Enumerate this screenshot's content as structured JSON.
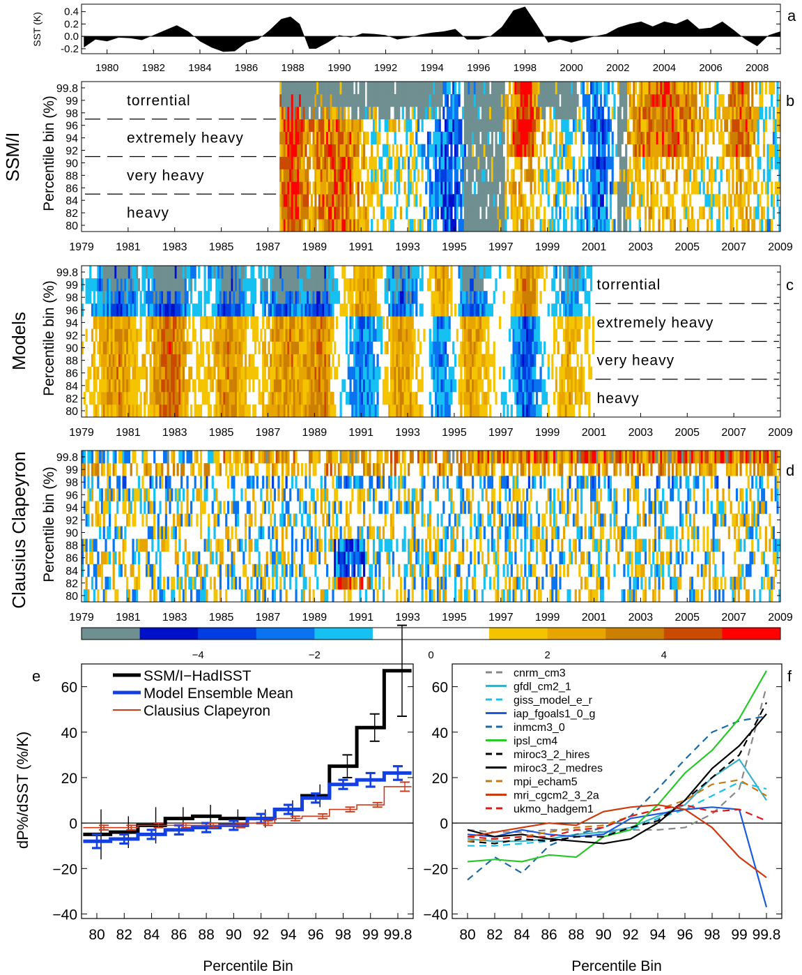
{
  "chart_data": [
    {
      "id": "a",
      "type": "area",
      "panel_label": "a",
      "ylabel": "SST (K)",
      "yticks": [
        "0.4",
        "0.2",
        "0.0",
        "-0.2"
      ],
      "ylim": [
        -0.28,
        0.52
      ],
      "xlim": [
        1978.9,
        2009.0
      ],
      "xticks": [
        "1980",
        "1982",
        "1984",
        "1986",
        "1988",
        "1990",
        "1992",
        "1994",
        "1996",
        "1998",
        "2000",
        "2002",
        "2004",
        "2006",
        "2008"
      ],
      "x": [
        1979.0,
        1979.5,
        1980.0,
        1980.5,
        1981.0,
        1981.5,
        1982.0,
        1982.5,
        1983.0,
        1983.5,
        1984.0,
        1984.5,
        1985.0,
        1985.5,
        1986.0,
        1986.5,
        1987.0,
        1987.5,
        1987.9,
        1988.3,
        1988.7,
        1989.0,
        1989.5,
        1990.0,
        1990.5,
        1991.0,
        1991.5,
        1992.0,
        1992.5,
        1993.0,
        1993.5,
        1994.0,
        1994.5,
        1995.0,
        1995.5,
        1996.0,
        1996.5,
        1997.0,
        1997.5,
        1998.0,
        1998.5,
        1999.0,
        1999.5,
        2000.0,
        2000.5,
        2001.0,
        2001.5,
        2002.0,
        2002.5,
        2003.0,
        2003.5,
        2004.0,
        2004.5,
        2005.0,
        2005.5,
        2006.0,
        2006.5,
        2007.0,
        2007.5,
        2008.0,
        2008.5,
        2009.0
      ],
      "y": [
        -0.18,
        -0.05,
        -0.08,
        -0.02,
        -0.03,
        -0.06,
        0.02,
        0.1,
        0.18,
        0.08,
        -0.08,
        -0.18,
        -0.25,
        -0.24,
        -0.1,
        -0.05,
        0.1,
        0.28,
        0.32,
        0.2,
        -0.2,
        -0.2,
        -0.1,
        0.02,
        -0.02,
        0.05,
        0.04,
        0.02,
        -0.05,
        -0.02,
        0.03,
        0.06,
        0.08,
        0.12,
        -0.05,
        -0.05,
        0.0,
        0.15,
        0.42,
        0.48,
        0.2,
        -0.1,
        -0.05,
        -0.1,
        -0.05,
        0.0,
        0.04,
        0.14,
        0.2,
        0.24,
        0.16,
        0.24,
        0.2,
        0.28,
        0.12,
        0.14,
        0.24,
        0.1,
        -0.05,
        -0.16,
        0.02,
        0.08
      ]
    },
    {
      "id": "b",
      "type": "heatmap",
      "panel_label": "b",
      "row_label": "SSM/I",
      "ylabel": "Percentile bin (%)",
      "yticks": [
        "80",
        "82",
        "84",
        "86",
        "88",
        "90",
        "92",
        "94",
        "96",
        "98",
        "99",
        "99.8"
      ],
      "xticks": [
        "1979",
        "1981",
        "1983",
        "1985",
        "1987",
        "1989",
        "1991",
        "1993",
        "1995",
        "1997",
        "1999",
        "2001",
        "2003",
        "2005",
        "2007",
        "2009"
      ],
      "data_start": 1987.5,
      "data_end": 2009.0,
      "missing_note_before": 1987.5,
      "categories": [
        "torrential",
        "extremely heavy",
        "very heavy",
        "heavy"
      ],
      "anomaly_series": [
        {
          "center": 1988.0,
          "amp": 5,
          "width": 0.6,
          "rows": "all"
        },
        {
          "center": 1990.0,
          "amp": 4,
          "width": 1.2,
          "rows": "low"
        },
        {
          "center": 1998.0,
          "amp": 5,
          "width": 0.7,
          "rows": "high"
        },
        {
          "center": 2004.0,
          "amp": 4,
          "width": 1.6,
          "rows": "high"
        },
        {
          "center": 2007.3,
          "amp": 4,
          "width": 0.6,
          "rows": "high"
        },
        {
          "center": 1994.7,
          "amp": -3,
          "width": 0.8,
          "rows": "mid"
        },
        {
          "center": 2001.2,
          "amp": -3,
          "width": 0.6,
          "rows": "mid"
        }
      ],
      "gray_blocks": [
        {
          "from": 1987.6,
          "to": 1994.5,
          "rows": "top"
        },
        {
          "from": 1995.4,
          "to": 1997.2,
          "rows": "all"
        },
        {
          "from": 1998.6,
          "to": 2000.3,
          "rows": "top"
        },
        {
          "from": 2002.0,
          "to": 2002.4,
          "rows": "all"
        }
      ]
    },
    {
      "id": "c",
      "type": "heatmap",
      "panel_label": "c",
      "row_label": "Models",
      "ylabel": "Percentile bin (%)",
      "yticks": [
        "80",
        "82",
        "84",
        "86",
        "88",
        "90",
        "92",
        "94",
        "96",
        "98",
        "99",
        "99.8"
      ],
      "xticks": [
        "1979",
        "1981",
        "1983",
        "1985",
        "1987",
        "1989",
        "1991",
        "1993",
        "1995",
        "1997",
        "1999",
        "2001",
        "2003",
        "2005",
        "2007",
        "2009"
      ],
      "data_start": 1979.0,
      "data_end": 2001.0,
      "categories": [
        "torrential",
        "extremely heavy",
        "very heavy",
        "heavy"
      ],
      "anomaly_series": [
        {
          "center": 1980.5,
          "amp": 3,
          "width": 1.0
        },
        {
          "center": 1982.8,
          "amp": 4,
          "width": 0.8
        },
        {
          "center": 1985.3,
          "amp": 3,
          "width": 0.8
        },
        {
          "center": 1987.8,
          "amp": 3,
          "width": 1.0
        },
        {
          "center": 1989.3,
          "amp": 3,
          "width": 0.6
        },
        {
          "center": 1991.3,
          "amp": -3,
          "width": 0.9
        },
        {
          "center": 1992.6,
          "amp": 3,
          "width": 1.0
        },
        {
          "center": 1994.6,
          "amp": -3,
          "width": 0.7
        },
        {
          "center": 1995.6,
          "amp": 3,
          "width": 0.8
        },
        {
          "center": 1998.1,
          "amp": -3,
          "width": 0.6
        },
        {
          "center": 2000.0,
          "amp": 2,
          "width": 0.7
        }
      ]
    },
    {
      "id": "d",
      "type": "heatmap",
      "panel_label": "d",
      "row_label": "Clausius Clapeyron",
      "ylabel": "Percentile bin (%)",
      "yticks": [
        "80",
        "82",
        "84",
        "86",
        "88",
        "90",
        "92",
        "94",
        "96",
        "98",
        "99",
        "99.8"
      ],
      "xticks": [
        "1979",
        "1981",
        "1983",
        "1985",
        "1987",
        "1989",
        "1991",
        "1993",
        "1995",
        "1997",
        "1999",
        "2001",
        "2003",
        "2005",
        "2007",
        "2009"
      ],
      "data_start": 1979.0,
      "data_end": 2009.0
    },
    {
      "id": "colorbar",
      "type": "heatmap",
      "colors": [
        "#6f8f91",
        "#0010c8",
        "#003ee0",
        "#0a74f0",
        "#16c0f0",
        "#ffffff",
        "#ffffff",
        "#f5c400",
        "#e8a500",
        "#cc7f00",
        "#cc4a00",
        "#ff0000"
      ],
      "ticks": [
        {
          "label": "−4",
          "value": -4
        },
        {
          "label": "−2",
          "value": -2
        },
        {
          "label": "0",
          "value": 0
        },
        {
          "label": "2",
          "value": 2
        },
        {
          "label": "4",
          "value": 4
        }
      ],
      "range": [
        -6,
        6
      ]
    },
    {
      "id": "e",
      "type": "line",
      "panel_label": "e",
      "xlabel": "Percentile Bin",
      "ylabel": "dP%/dSST (%/K)",
      "ylim": [
        -42,
        70
      ],
      "yticks": [
        -40,
        -20,
        0,
        20,
        40,
        60
      ],
      "categories": [
        "80",
        "82",
        "84",
        "86",
        "88",
        "90",
        "92",
        "94",
        "96",
        "98",
        "99",
        "99.8"
      ],
      "series": [
        {
          "name": "SSM/I−HadISST",
          "color": "#000000",
          "values": [
            -5,
            -4,
            -1,
            2,
            3,
            2,
            2,
            6,
            12,
            25,
            42,
            67
          ],
          "err": [
            11,
            7,
            8,
            5,
            5,
            4,
            4,
            4,
            5,
            5,
            6,
            20
          ]
        },
        {
          "name": "Model Ensemble Mean",
          "color": "#1540e0",
          "values": [
            -8,
            -7,
            -5,
            -3,
            -2,
            -1,
            2,
            6,
            11,
            17,
            19,
            22
          ],
          "err": [
            3,
            2,
            2,
            2,
            2,
            2,
            2,
            2,
            2,
            2,
            3,
            3
          ]
        },
        {
          "name": "Clausius Clapeyron",
          "color": "#cc3a1a",
          "values": [
            -2,
            -2,
            -1,
            -1,
            -1,
            -1,
            0,
            2,
            3,
            6,
            8,
            16
          ],
          "err": [
            1,
            1,
            1,
            1,
            1,
            1,
            1,
            1,
            1,
            1,
            1,
            2
          ]
        }
      ]
    },
    {
      "id": "f",
      "type": "line",
      "panel_label": "f",
      "xlabel": "Percentile Bin",
      "ylim": [
        -42,
        70
      ],
      "yticks": [
        -40,
        -20,
        0,
        20,
        40,
        60
      ],
      "categories": [
        "80",
        "82",
        "84",
        "86",
        "88",
        "90",
        "92",
        "94",
        "96",
        "98",
        "99",
        "99.8"
      ],
      "series": [
        {
          "name": "cnrm_cm3",
          "color": "#888888",
          "dash": true,
          "values": [
            -3,
            -4,
            -4,
            -3,
            -3,
            -4,
            -3,
            -3,
            -2,
            4,
            15,
            60
          ]
        },
        {
          "name": "gfdl_cm2_1",
          "color": "#3ab0c8",
          "dash": false,
          "values": [
            -7,
            -8,
            -8,
            -7,
            -5,
            -4,
            -2,
            3,
            8,
            20,
            28,
            10
          ]
        },
        {
          "name": "giss_model_e_r",
          "color": "#18c0ee",
          "dash": true,
          "values": [
            -10,
            -10,
            -9,
            -8,
            -6,
            -5,
            -3,
            2,
            6,
            12,
            18,
            15
          ]
        },
        {
          "name": "iap_fgoals1_0_g",
          "color": "#1a5ae0",
          "dash": false,
          "values": [
            -5,
            -6,
            -3,
            -5,
            -6,
            -5,
            2,
            4,
            6,
            7,
            6,
            -37
          ]
        },
        {
          "name": "inmcm3_0",
          "color": "#1a6aa8",
          "dash": true,
          "values": [
            -25,
            -15,
            -22,
            -10,
            -5,
            -2,
            3,
            15,
            28,
            40,
            45,
            47
          ]
        },
        {
          "name": "ipsl_cm4",
          "color": "#28c828",
          "dash": false,
          "values": [
            -17,
            -16,
            -17,
            -14,
            -15,
            -6,
            -3,
            8,
            22,
            32,
            46,
            67
          ]
        },
        {
          "name": "miroc3_2_hires",
          "color": "#000000",
          "dash": true,
          "values": [
            -8,
            -9,
            -7,
            -8,
            -6,
            -6,
            -2,
            1,
            10,
            20,
            30,
            53
          ]
        },
        {
          "name": "miroc3_2_medres",
          "color": "#000000",
          "dash": false,
          "values": [
            -3,
            -6,
            -5,
            -7,
            -8,
            -9,
            -7,
            0,
            10,
            24,
            34,
            48
          ]
        },
        {
          "name": "mpi_echam5",
          "color": "#c47a10",
          "dash": true,
          "values": [
            -8,
            -7,
            -6,
            -4,
            -2,
            -1,
            3,
            6,
            10,
            17,
            19,
            12
          ]
        },
        {
          "name": "mri_cgcm2_3_2a",
          "color": "#cc3a10",
          "dash": false,
          "values": [
            -6,
            -4,
            -2,
            0,
            -1,
            5,
            7,
            8,
            6,
            -2,
            -15,
            -24
          ]
        },
        {
          "name": "ukmo_hadgem1",
          "color": "#e01818",
          "dash": true,
          "values": [
            -6,
            -7,
            -6,
            -6,
            -3,
            -2,
            3,
            6,
            8,
            5,
            6,
            1
          ]
        }
      ]
    }
  ]
}
